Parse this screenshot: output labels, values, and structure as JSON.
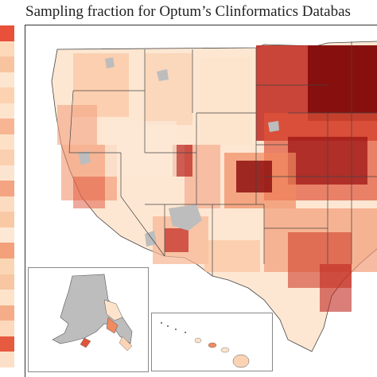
{
  "title": "Sampling fraction for Optum’s Clinformatics Databas",
  "colors": {
    "lightest": "#fdeee0",
    "light": "#fcd7b6",
    "mid_light": "#f9b68e",
    "mid": "#f08a60",
    "mid_dark": "#e0543a",
    "dark": "#b8211b",
    "darkest": "#7f0a0a",
    "missing": "#bdbdbd",
    "border": "#555555"
  },
  "legend_segments": [
    "#e8503a",
    "#fdd9b9",
    "#f8c4a0",
    "#fde6cf",
    "#fcd2b0",
    "#fde4cc",
    "#f7b593",
    "#fde1c6",
    "#fad0b0",
    "#fce5d0",
    "#f4a483",
    "#fcdcc0",
    "#f9c9a6",
    "#fde8d6",
    "#f3a07b",
    "#fbd6b5",
    "#f8c6a2",
    "#fde3ca",
    "#f5ad89",
    "#fcd9bb",
    "#e65b3f",
    "#fbe0c7"
  ]
}
